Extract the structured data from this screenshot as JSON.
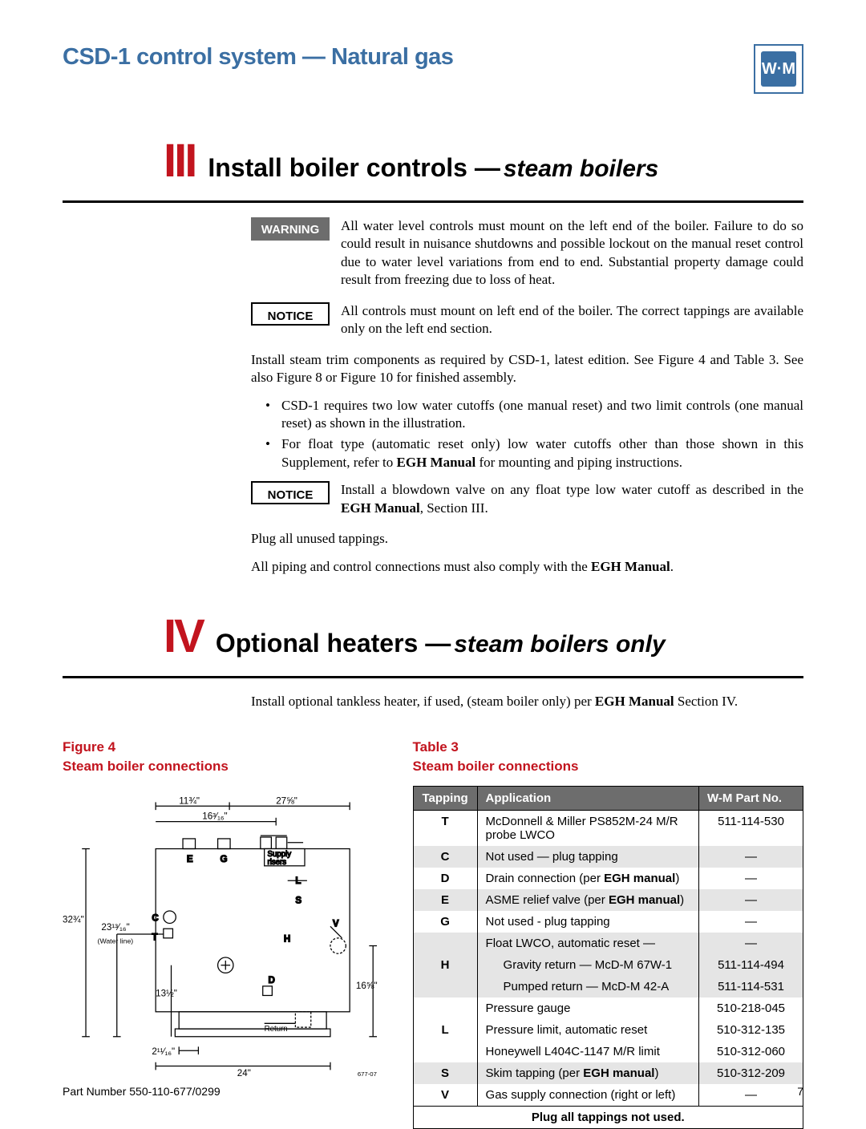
{
  "header": {
    "title": "CSD-1 control system — Natural gas",
    "logo_text": "W·M"
  },
  "section3": {
    "roman": "III",
    "title": "Install boiler controls —",
    "subtitle": "steam boilers",
    "warning": {
      "label": "WARNING",
      "text": "All water level controls must mount on the left end of the boiler. Failure to do so could result in nuisance shutdowns and possible lockout on the manual reset control due to water level variations from end to end. Substantial property damage could result from freezing due to loss of heat."
    },
    "notice1": {
      "label": "NOTICE",
      "text": "All controls must mount on left end of the boiler. The correct tappings are available only on the left end section."
    },
    "para1": "Install steam trim components as required by CSD-1, latest edition. See Figure 4 and Table 3. See also Figure 8 or Figure 10  for finished assembly.",
    "bullet1": "CSD-1 requires two low water cutoffs (one manual reset) and two limit controls (one manual reset) as shown in the illustration.",
    "bullet2_a": "For float type (automatic reset only) low water cutoffs other than those shown in this Supplement, refer to ",
    "bullet2_b": "EGH Manual",
    "bullet2_c": " for mounting and piping instructions.",
    "notice2": {
      "label": "NOTICE",
      "text_a": "Install a blowdown valve on any float type low water cutoff as described in the ",
      "text_b": "EGH Manual",
      "text_c": ", Section III."
    },
    "para2": "Plug all unused tappings.",
    "para3_a": "All piping and control connections must also comply with the ",
    "para3_b": "EGH Manual",
    "para3_c": "."
  },
  "section4": {
    "roman": "IV",
    "title": "Optional heaters —",
    "subtitle": "steam boilers only",
    "para_a": "Install optional tankless heater, if used, (steam boiler only) per ",
    "para_b": "EGH Manual",
    "para_c": " Section IV."
  },
  "figure": {
    "label": "Figure 4",
    "caption": "Steam boiler connections",
    "dims": {
      "d1": "11¾\"",
      "d2": "27⅝\"",
      "d3": "16³⁄₁₆\"",
      "d4": "32¾\"",
      "d5": "23¹³⁄₁₆\"",
      "waterline": "(Water line)",
      "d6": "13½\"",
      "d7": "16⅝\"",
      "d8": "2¹¹⁄₁₆\"",
      "d9": "24\"",
      "supply": "Supply risers",
      "return": "Return",
      "code": "677-07"
    },
    "labels": {
      "E": "E",
      "G": "G",
      "L": "L",
      "S": "S",
      "C": "C",
      "T": "T",
      "H": "H",
      "V": "V",
      "D": "D"
    }
  },
  "table": {
    "label": "Table 3",
    "caption": "Steam boiler connections",
    "headers": {
      "c1": "Tapping",
      "c2": "Application",
      "c3": "W-M Part No."
    },
    "rows": [
      {
        "t": "T",
        "a": "McDonnell & Miller PS852M-24 M/R probe LWCO",
        "p": "511-114-530",
        "shade": false
      },
      {
        "t": "C",
        "a": "Not used — plug tapping",
        "p": "—",
        "shade": true
      },
      {
        "t": "D",
        "a": "Drain connection (per EGH manual)",
        "p": "—",
        "shade": false,
        "bold_part": "EGH manual"
      },
      {
        "t": "E",
        "a": "ASME relief valve (per EGH manual)",
        "p": "—",
        "shade": true,
        "bold_part": "EGH manual"
      },
      {
        "t": "G",
        "a": "Not used - plug tapping",
        "p": "—",
        "shade": false
      },
      {
        "t": "",
        "a": "Float LWCO, automatic reset —",
        "p": "—",
        "shade": true
      },
      {
        "t": "H",
        "a": "Gravity return — McD-M 67W-1",
        "p": "511-114-494",
        "shade": true,
        "indent": true
      },
      {
        "t": "",
        "a": "Pumped return — McD-M 42-A",
        "p": "511-114-531",
        "shade": true,
        "indent": true
      },
      {
        "t": "",
        "a": "Pressure gauge",
        "p": "510-218-045",
        "shade": false
      },
      {
        "t": "L",
        "a": "Pressure limit, automatic reset",
        "p": "510-312-135",
        "shade": false
      },
      {
        "t": "",
        "a": "Honeywell L404C-1147 M/R limit",
        "p": "510-312-060",
        "shade": false
      },
      {
        "t": "S",
        "a": "Skim tapping (per EGH manual)",
        "p": "510-312-209",
        "shade": true,
        "bold_part": "EGH manual"
      },
      {
        "t": "V",
        "a": "Gas supply connection (right or left)",
        "p": "—",
        "shade": false
      }
    ],
    "footer": "Plug all tappings not used."
  },
  "footer": {
    "part": "Part Number 550-110-677/0299",
    "page": "7"
  }
}
